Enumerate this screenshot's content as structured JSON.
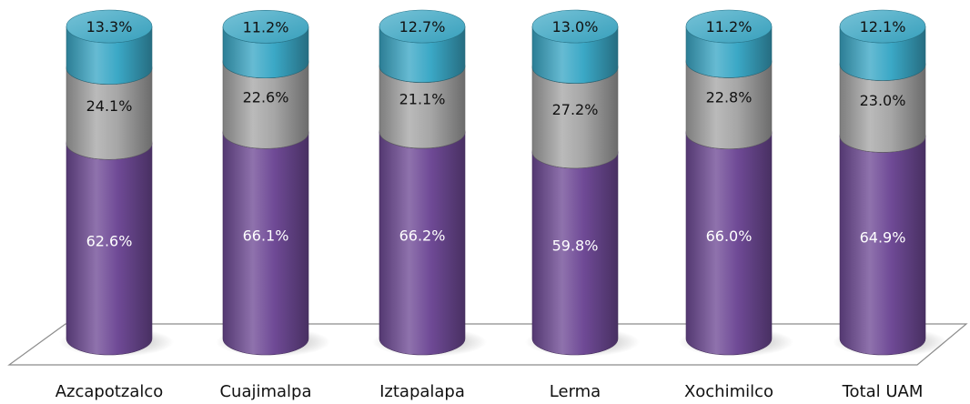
{
  "chart_data": {
    "type": "bar",
    "stacked": true,
    "percent_stacked": true,
    "three_d": true,
    "categories": [
      "Azcapotzalco",
      "Cuajimalpa",
      "Iztapalapa",
      "Lerma",
      "Xochimilco",
      "Total UAM"
    ],
    "series": [
      {
        "values": [
          62.6,
          66.1,
          66.2,
          59.8,
          66.0,
          64.9
        ],
        "labels": [
          "62.6%",
          "66.1%",
          "66.2%",
          "59.8%",
          "66.0%",
          "64.9%"
        ],
        "color": "#6F4A96",
        "label_color": "#FFFFFF"
      },
      {
        "values": [
          24.1,
          22.6,
          21.1,
          27.2,
          22.8,
          23.0
        ],
        "labels": [
          "24.1%",
          "22.6%",
          "21.1%",
          "27.2%",
          "22.8%",
          "23.0%"
        ],
        "color": "#A6A6A6",
        "label_color": "#111111"
      },
      {
        "values": [
          13.3,
          11.2,
          12.7,
          13.0,
          11.2,
          12.1
        ],
        "labels": [
          "13.3%",
          "11.2%",
          "12.7%",
          "13.0%",
          "11.2%",
          "12.1%"
        ],
        "color": "#3BA8C6",
        "label_color": "#111111"
      }
    ],
    "title": "",
    "xlabel": "",
    "ylabel": "",
    "ylim": [
      0,
      100
    ],
    "legend": "none",
    "grid": false
  }
}
